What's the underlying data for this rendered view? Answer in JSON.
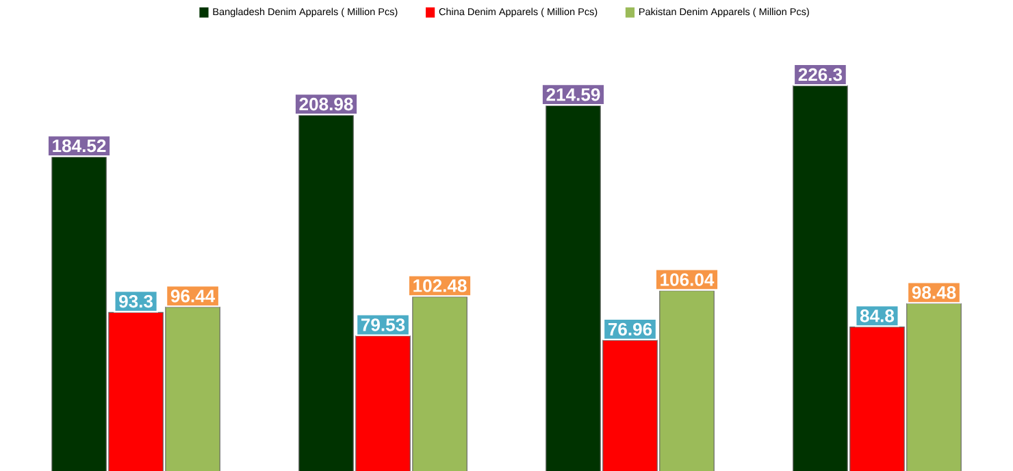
{
  "chart_data": {
    "type": "bar",
    "categories": [
      null,
      null,
      null,
      null
    ],
    "series": [
      {
        "name": "Bangladesh  Denim Apparels ( Million Pcs)",
        "color": "#003300",
        "values": [
          184.52,
          208.98,
          214.59,
          226.3
        ]
      },
      {
        "name": "China  Denim Apparels ( Million Pcs)",
        "color": "#ff0000",
        "values": [
          93.3,
          79.53,
          76.96,
          84.8
        ]
      },
      {
        "name": "Pakistan  Denim Apparels ( Million Pcs)",
        "color": "#9bbb59",
        "values": [
          96.44,
          102.48,
          106.04,
          98.48
        ]
      }
    ],
    "data_labels": true,
    "legend": "top"
  }
}
